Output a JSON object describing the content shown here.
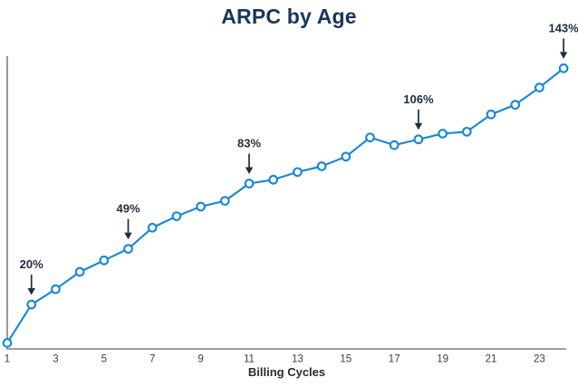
{
  "chart_data": {
    "type": "line",
    "title": "ARPC by Age",
    "xlabel": "Billing Cycles",
    "ylabel": "",
    "x": [
      1,
      2,
      3,
      4,
      5,
      6,
      7,
      8,
      9,
      10,
      11,
      12,
      13,
      14,
      15,
      16,
      17,
      18,
      19,
      20,
      21,
      22,
      23,
      24
    ],
    "values": [
      0,
      20,
      28,
      37,
      43,
      49,
      60,
      66,
      71,
      74,
      83,
      85,
      89,
      92,
      97,
      107,
      103,
      106,
      109,
      110,
      119,
      124,
      133,
      143
    ],
    "unit": "%",
    "x_tick_labels": [
      "1",
      "3",
      "5",
      "7",
      "9",
      "11",
      "13",
      "15",
      "17",
      "19",
      "21",
      "23"
    ],
    "ylim": [
      -3,
      150
    ],
    "y_axis_labels_visible": false,
    "grid": false,
    "legend": false,
    "annotations": [
      {
        "x": 2,
        "label": "20%"
      },
      {
        "x": 6,
        "label": "49%"
      },
      {
        "x": 11,
        "label": "83%"
      },
      {
        "x": 18,
        "label": "106%"
      },
      {
        "x": 24,
        "label": "143%"
      }
    ],
    "colors": {
      "line": "#1686d9",
      "marker_fill": "#ffffff",
      "axis": "#7f7f7f",
      "title": "#17365d",
      "annotation": "#1f2d3d",
      "tick": "#3d3d3d"
    }
  }
}
